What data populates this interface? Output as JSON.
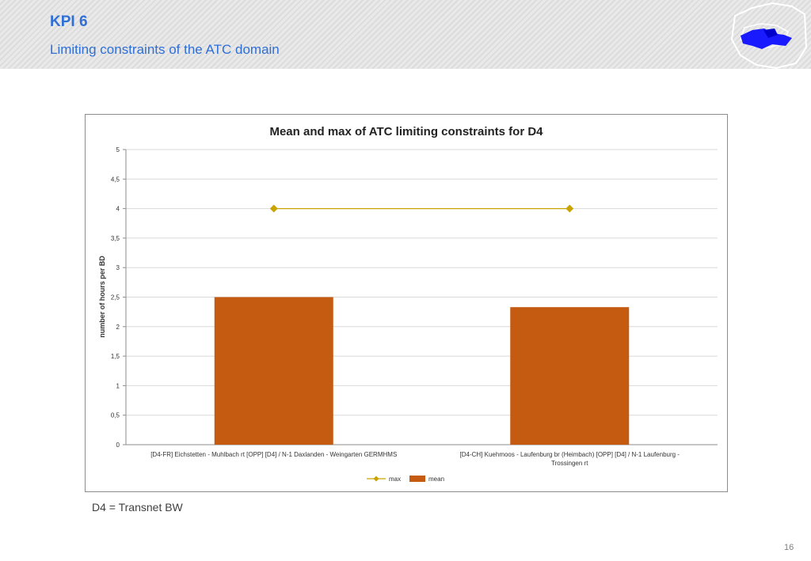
{
  "header": {
    "title": "KPI 6",
    "subtitle": "Limiting constraints of the ATC domain"
  },
  "logo": {
    "icon": "europe-map-logo-icon",
    "color": "#1a1aff"
  },
  "chart_data": {
    "type": "bar",
    "title": "Mean and max of ATC limiting constraints for D4",
    "ylabel": "number of hours per BD",
    "xlabel": "",
    "ylim": [
      0,
      5
    ],
    "yticks": [
      0,
      0.5,
      1,
      1.5,
      2,
      2.5,
      3,
      3.5,
      4,
      4.5,
      5
    ],
    "ytick_labels": [
      "0",
      "0,5",
      "1",
      "1,5",
      "2",
      "2,5",
      "3",
      "3,5",
      "4",
      "4,5",
      "5"
    ],
    "categories": [
      [
        "[D4-FR] Eichstetten - Muhlbach rt [OPP] [D4] / N-1 Daxlanden - Weingarten GERMHMS"
      ],
      [
        "[D4-CH] Kuehmoos - Laufenburg br (Heimbach) [OPP] [D4] / N-1 Laufenburg -",
        "Trossingen rt"
      ]
    ],
    "series": [
      {
        "name": "mean",
        "kind": "bar",
        "values": [
          2.5,
          2.33
        ],
        "color": "#c55a11"
      },
      {
        "name": "max",
        "kind": "line",
        "values": [
          4,
          4
        ],
        "color": "#c9a400"
      }
    ],
    "grid": true,
    "legend": "bottom-center"
  },
  "footnote": "D4 = Transnet BW",
  "page_number": "16"
}
